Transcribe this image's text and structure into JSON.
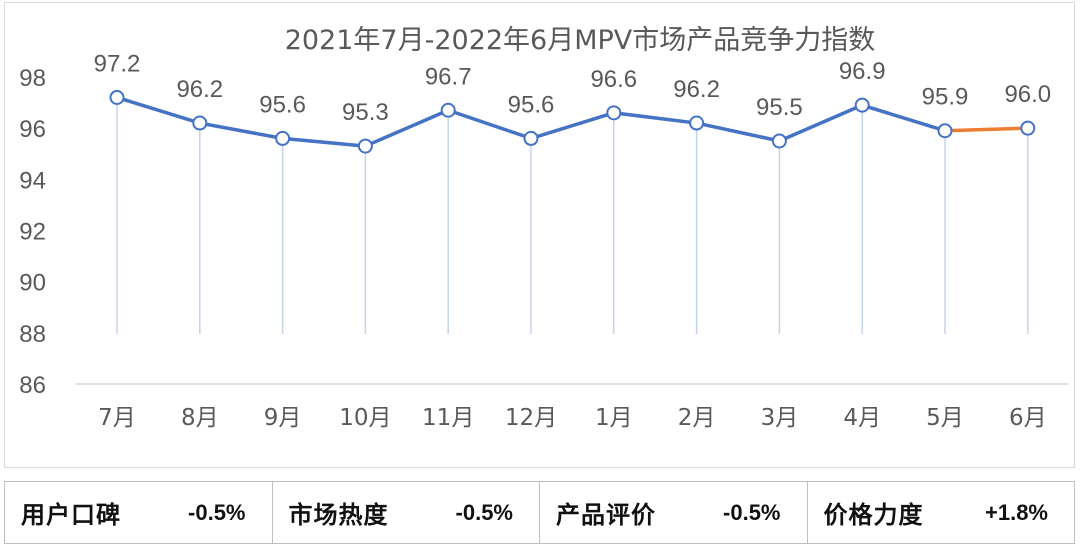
{
  "chart_data": {
    "type": "line",
    "title": "2021年7月-2022年6月MPV市场产品竞争力指数",
    "categories": [
      "7月",
      "8月",
      "9月",
      "10月",
      "11月",
      "12月",
      "1月",
      "2月",
      "3月",
      "4月",
      "5月",
      "6月"
    ],
    "values": [
      97.2,
      96.2,
      95.6,
      95.3,
      96.7,
      95.6,
      96.6,
      96.2,
      95.5,
      96.9,
      95.9,
      96.0
    ],
    "data_labels": [
      "97.2",
      "96.2",
      "95.6",
      "95.3",
      "96.7",
      "95.6",
      "96.6",
      "96.2",
      "95.5",
      "96.9",
      "95.9",
      "96.0"
    ],
    "ylim": [
      86,
      98
    ],
    "yticks": [
      "86",
      "88",
      "90",
      "92",
      "94",
      "96",
      "98"
    ],
    "xlabel": "",
    "ylabel": "",
    "grid": false,
    "colors": {
      "main_line": "#4472c4",
      "last_segment": "#ed7d31",
      "drop_line": "#c5d3ea",
      "axis": "#bfbfbf",
      "text": "#595959"
    }
  },
  "metrics": [
    {
      "label": "用户口碑",
      "value": "-0.5%"
    },
    {
      "label": "市场热度",
      "value": "-0.5%"
    },
    {
      "label": "产品评价",
      "value": "-0.5%"
    },
    {
      "label": "价格力度",
      "value": "+1.8%"
    }
  ]
}
